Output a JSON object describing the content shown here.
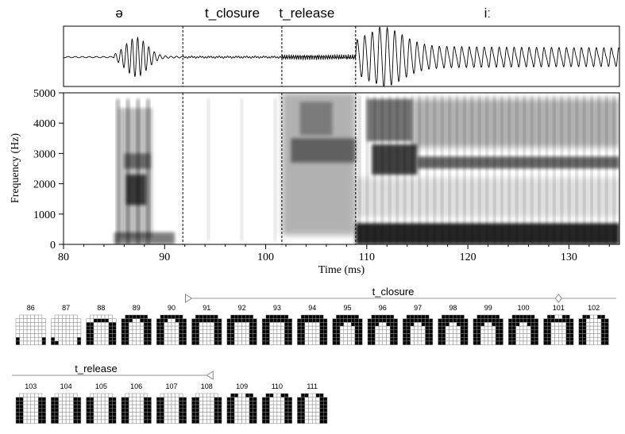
{
  "chart_data": [
    {
      "type": "line",
      "subtype": "waveform",
      "segments": [
        {
          "label": "ə",
          "start_ms": 80,
          "end_ms": 91.8
        },
        {
          "label": "t_closure",
          "start_ms": 91.8,
          "end_ms": 101.6
        },
        {
          "label": "t_release",
          "start_ms": 101.6,
          "end_ms": 108.9
        },
        {
          "label": "iː",
          "start_ms": 108.9,
          "end_ms": 135
        }
      ],
      "boundaries_ms": [
        91.8,
        101.6,
        108.9
      ],
      "xlim": [
        80,
        135
      ]
    },
    {
      "type": "heatmap",
      "subtype": "spectrogram",
      "xlabel": "Time (ms)",
      "ylabel": "Frequency (Hz)",
      "xlim": [
        80,
        135
      ],
      "ylim": [
        0,
        5000
      ],
      "xticks": [
        80,
        90,
        100,
        110,
        120,
        130
      ],
      "yticks": [
        0,
        1000,
        2000,
        3000,
        4000,
        5000
      ],
      "xtick_labels": [
        "80",
        "90",
        "100",
        "110",
        "120",
        "130"
      ],
      "ytick_labels": [
        "0",
        "1000",
        "2000",
        "3000",
        "4000",
        "5000"
      ],
      "boundaries_ms": [
        91.8,
        101.6,
        108.9
      ],
      "grid": false
    },
    {
      "type": "table",
      "subtype": "electropalatogram",
      "rows_of_frames": [
        {
          "frames": [
            86,
            87,
            88,
            89,
            90,
            91,
            92,
            93,
            94,
            95,
            96,
            97,
            98,
            99,
            100,
            101,
            102
          ],
          "interval": {
            "label": "t_closure",
            "start_frame": 91,
            "end_frame": 101
          }
        },
        {
          "frames": [
            103,
            104,
            105,
            106,
            107,
            108,
            109,
            110,
            111
          ],
          "interval": {
            "label": "t_release",
            "start_frame": 102,
            "end_frame": 108
          }
        }
      ],
      "frame_labels": [
        "86",
        "87",
        "88",
        "89",
        "90",
        "91",
        "92",
        "93",
        "94",
        "95",
        "96",
        "97",
        "98",
        "99",
        "100",
        "101",
        "102",
        "103",
        "104",
        "105",
        "106",
        "107",
        "108",
        "109",
        "110",
        "111"
      ]
    }
  ]
}
